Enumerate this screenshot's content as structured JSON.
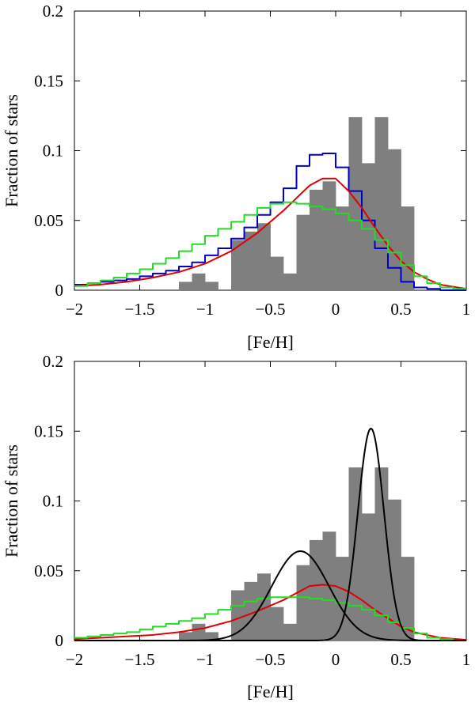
{
  "chart_data": [
    {
      "type": "histogram",
      "xlabel": "[Fe/H]",
      "ylabel": "Fraction of stars",
      "xlim": [
        -2,
        1
      ],
      "ylim": [
        0,
        0.2
      ],
      "xticks": [
        -2,
        -1.5,
        -1,
        -0.5,
        0,
        0.5,
        1
      ],
      "xtick_labels": [
        "−2",
        "−1.5",
        "−1",
        "−0.5",
        "0",
        "0.5",
        "1"
      ],
      "yticks": [
        0,
        0.05,
        0.1,
        0.15,
        0.2
      ],
      "ytick_labels": [
        "0",
        "0.05",
        "0.1",
        "0.15",
        "0.2"
      ],
      "histogram": {
        "name": "observed",
        "color": "#7f7f7f",
        "bin_edges": [
          -1.2,
          -1.1,
          -1.0,
          -0.9,
          -0.8,
          -0.7,
          -0.6,
          -0.5,
          -0.4,
          -0.3,
          -0.2,
          -0.1,
          0.0,
          0.1,
          0.2,
          0.3,
          0.4,
          0.5,
          0.6
        ],
        "values": [
          0.006,
          0.012,
          0.006,
          0.0,
          0.036,
          0.042,
          0.048,
          0.024,
          0.012,
          0.054,
          0.072,
          0.078,
          0.06,
          0.124,
          0.091,
          0.124,
          0.101,
          0.06
        ]
      },
      "series": [
        {
          "name": "blue model",
          "style": "step",
          "color": "#0000cc",
          "x": [
            -2,
            -1.9,
            -1.8,
            -1.7,
            -1.6,
            -1.5,
            -1.4,
            -1.3,
            -1.2,
            -1.1,
            -1.0,
            -0.9,
            -0.8,
            -0.7,
            -0.6,
            -0.5,
            -0.4,
            -0.3,
            -0.2,
            -0.1,
            0.0,
            0.1,
            0.2,
            0.3,
            0.4,
            0.5,
            0.6,
            0.7,
            0.8,
            0.9,
            1.0
          ],
          "values": [
            0.004,
            0.005,
            0.006,
            0.007,
            0.008,
            0.01,
            0.012,
            0.014,
            0.017,
            0.02,
            0.025,
            0.03,
            0.037,
            0.045,
            0.054,
            0.063,
            0.073,
            0.089,
            0.097,
            0.098,
            0.088,
            0.071,
            0.05,
            0.03,
            0.016,
            0.006,
            0.002,
            0.001,
            0.0,
            0.0
          ]
        },
        {
          "name": "red model",
          "style": "line",
          "color": "#e00000",
          "x": [
            -2,
            -1.8,
            -1.6,
            -1.4,
            -1.2,
            -1.0,
            -0.8,
            -0.6,
            -0.4,
            -0.3,
            -0.2,
            -0.1,
            0.0,
            0.1,
            0.2,
            0.3,
            0.4,
            0.5,
            0.6,
            0.7,
            0.8,
            1.0
          ],
          "values": [
            0.003,
            0.004,
            0.006,
            0.009,
            0.013,
            0.019,
            0.028,
            0.041,
            0.057,
            0.066,
            0.075,
            0.08,
            0.08,
            0.071,
            0.059,
            0.045,
            0.032,
            0.021,
            0.013,
            0.008,
            0.004,
            0.001
          ]
        },
        {
          "name": "green model",
          "style": "step",
          "color": "#22dd22",
          "x": [
            -2,
            -1.9,
            -1.8,
            -1.7,
            -1.6,
            -1.5,
            -1.4,
            -1.3,
            -1.2,
            -1.1,
            -1.0,
            -0.9,
            -0.8,
            -0.7,
            -0.6,
            -0.5,
            -0.4,
            -0.3,
            -0.2,
            -0.1,
            0.0,
            0.1,
            0.2,
            0.3,
            0.4,
            0.5,
            0.6,
            0.7,
            0.8,
            0.9,
            1.0
          ],
          "values": [
            0.003,
            0.005,
            0.007,
            0.009,
            0.012,
            0.015,
            0.019,
            0.023,
            0.028,
            0.033,
            0.039,
            0.044,
            0.049,
            0.054,
            0.059,
            0.062,
            0.063,
            0.062,
            0.06,
            0.058,
            0.055,
            0.05,
            0.044,
            0.036,
            0.027,
            0.018,
            0.01,
            0.005,
            0.002,
            0.001
          ]
        }
      ]
    },
    {
      "type": "histogram",
      "xlabel": "[Fe/H]",
      "ylabel": "Fraction of stars",
      "xlim": [
        -2,
        1
      ],
      "ylim": [
        0,
        0.2
      ],
      "xticks": [
        -2,
        -1.5,
        -1,
        -0.5,
        0,
        0.5,
        1
      ],
      "xtick_labels": [
        "−2",
        "−1.5",
        "−1",
        "−0.5",
        "0",
        "0.5",
        "1"
      ],
      "yticks": [
        0,
        0.05,
        0.1,
        0.15,
        0.2
      ],
      "ytick_labels": [
        "0",
        "0.05",
        "0.1",
        "0.15",
        "0.2"
      ],
      "histogram": {
        "name": "observed",
        "color": "#7f7f7f",
        "bin_edges": [
          -1.2,
          -1.1,
          -1.0,
          -0.9,
          -0.8,
          -0.7,
          -0.6,
          -0.5,
          -0.4,
          -0.3,
          -0.2,
          -0.1,
          0.0,
          0.1,
          0.2,
          0.3,
          0.4,
          0.5,
          0.6
        ],
        "values": [
          0.006,
          0.012,
          0.006,
          0.0,
          0.036,
          0.042,
          0.048,
          0.024,
          0.012,
          0.054,
          0.072,
          0.078,
          0.06,
          0.124,
          0.091,
          0.124,
          0.101,
          0.06
        ]
      },
      "series": [
        {
          "name": "red model",
          "style": "line",
          "color": "#e00000",
          "x": [
            -2,
            -1.8,
            -1.6,
            -1.4,
            -1.2,
            -1.0,
            -0.8,
            -0.6,
            -0.4,
            -0.3,
            -0.2,
            -0.1,
            0.0,
            0.1,
            0.2,
            0.3,
            0.4,
            0.5,
            0.6,
            0.7,
            0.8,
            1.0
          ],
          "values": [
            0.001,
            0.002,
            0.003,
            0.004,
            0.006,
            0.009,
            0.014,
            0.021,
            0.029,
            0.034,
            0.039,
            0.04,
            0.039,
            0.035,
            0.029,
            0.022,
            0.016,
            0.01,
            0.006,
            0.004,
            0.002,
            0.0005
          ]
        },
        {
          "name": "green model",
          "style": "step",
          "color": "#22dd22",
          "x": [
            -2,
            -1.9,
            -1.8,
            -1.7,
            -1.6,
            -1.5,
            -1.4,
            -1.3,
            -1.2,
            -1.1,
            -1.0,
            -0.9,
            -0.8,
            -0.7,
            -0.6,
            -0.5,
            -0.4,
            -0.3,
            -0.2,
            -0.1,
            0.0,
            0.1,
            0.2,
            0.3,
            0.4,
            0.5,
            0.6,
            0.7,
            0.8,
            0.9,
            1.0
          ],
          "values": [
            0.002,
            0.003,
            0.004,
            0.005,
            0.006,
            0.008,
            0.01,
            0.012,
            0.014,
            0.016,
            0.019,
            0.022,
            0.025,
            0.028,
            0.03,
            0.031,
            0.031,
            0.031,
            0.03,
            0.029,
            0.027,
            0.025,
            0.022,
            0.018,
            0.013,
            0.009,
            0.005,
            0.002,
            0.001,
            0.0
          ]
        },
        {
          "name": "gaussian component 1",
          "style": "gaussian",
          "color": "#000000",
          "mean": -0.27,
          "sigma": 0.22,
          "peak": 0.064
        },
        {
          "name": "gaussian component 2",
          "style": "gaussian",
          "color": "#000000",
          "mean": 0.27,
          "sigma": 0.1,
          "peak": 0.152
        }
      ]
    }
  ]
}
